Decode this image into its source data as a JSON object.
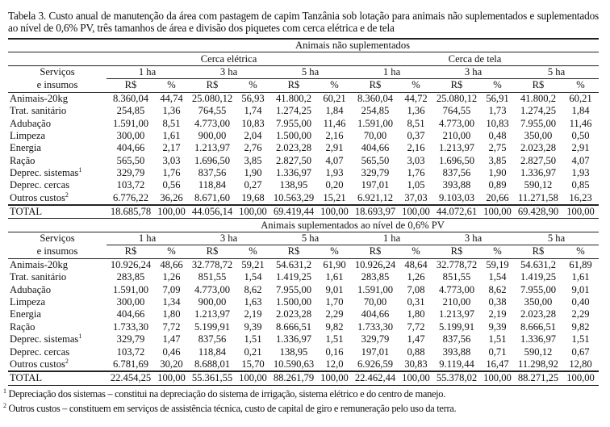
{
  "title": "Tabela 3. Custo anual de manutenção da área com pastagem de capim Tanzânia sob lotação para animais não suplementados e suplementados ao nível de 0,6% PV, três tamanhos de área e divisão dos piquetes com cerca elétrica e de tela",
  "header": {
    "services_line1": "Serviços",
    "services_line2": "e insumos",
    "fences": [
      "Cerca elétrica",
      "Cerca de tela"
    ],
    "areas": [
      "1 ha",
      "3 ha",
      "5 ha"
    ],
    "units": [
      "R$",
      "%"
    ]
  },
  "sections": [
    {
      "title": "Animais não suplementados",
      "show_fence_row": true,
      "rows": [
        {
          "label": "Animais-20kg",
          "sup": "",
          "values": [
            "8.360,04",
            "44,74",
            "25.080,12",
            "56,93",
            "41.800,2",
            "60,21",
            "8.360,04",
            "44,72",
            "25.080,12",
            "56,91",
            "41.800,2",
            "60,21"
          ]
        },
        {
          "label": "Trat. sanitário",
          "sup": "",
          "values": [
            "254,85",
            "1,36",
            "764,55",
            "1,74",
            "1.274,25",
            "1,84",
            "254,85",
            "1,36",
            "764,55",
            "1,73",
            "1.274,25",
            "1,84"
          ]
        },
        {
          "label": "Adubação",
          "sup": "",
          "values": [
            "1.591,00",
            "8,51",
            "4.773,00",
            "10,83",
            "7.955,00",
            "11,46",
            "1.591,00",
            "8,51",
            "4.773,00",
            "10,83",
            "7.955,00",
            "11,46"
          ]
        },
        {
          "label": "Limpeza",
          "sup": "",
          "values": [
            "300,00",
            "1,61",
            "900,00",
            "2,04",
            "1.500,00",
            "2,16",
            "70,00",
            "0,37",
            "210,00",
            "0,48",
            "350,00",
            "0,50"
          ]
        },
        {
          "label": "Energia",
          "sup": "",
          "values": [
            "404,66",
            "2,17",
            "1.213,97",
            "2,76",
            "2.023,28",
            "2,91",
            "404,66",
            "2,16",
            "1.213,97",
            "2,75",
            "2.023,28",
            "2,91"
          ]
        },
        {
          "label": "Ração",
          "sup": "",
          "values": [
            "565,50",
            "3,03",
            "1.696,50",
            "3,85",
            "2.827,50",
            "4,07",
            "565,50",
            "3,03",
            "1.696,50",
            "3,85",
            "2.827,50",
            "4,07"
          ]
        },
        {
          "label": "Deprec. sistemas",
          "sup": "1",
          "values": [
            "329,79",
            "1,76",
            "837,56",
            "1,90",
            "1.336,97",
            "1,93",
            "329,79",
            "1,76",
            "837,56",
            "1,90",
            "1.336,97",
            "1,93"
          ]
        },
        {
          "label": "Deprec. cercas",
          "sup": "",
          "values": [
            "103,72",
            "0,56",
            "118,84",
            "0,27",
            "138,95",
            "0,20",
            "197,01",
            "1,05",
            "393,88",
            "0,89",
            "590,12",
            "0,85"
          ]
        },
        {
          "label": "Outros custos",
          "sup": "2",
          "values": [
            "6.776,22",
            "36,26",
            "8.671,60",
            "19,68",
            "10.563,29",
            "15,21",
            "6.921,12",
            "37,03",
            "9.103,03",
            "20,66",
            "11.271,58",
            "16,23"
          ]
        }
      ],
      "total": {
        "label": "TOTAL",
        "values": [
          "18.685,78",
          "100,00",
          "44.056,14",
          "100,00",
          "69.419,44",
          "100,00",
          "18.693,97",
          "100,00",
          "44.072,61",
          "100,00",
          "69.428,90",
          "100,00"
        ]
      }
    },
    {
      "title": "Animais suplementados ao nível de 0,6% PV",
      "show_fence_row": false,
      "rows": [
        {
          "label": "Animais-20kg",
          "sup": "",
          "values": [
            "10.926,24",
            "48,66",
            "32.778,72",
            "59,21",
            "54.631,2",
            "61,90",
            "10.926,24",
            "48,64",
            "32.778,72",
            "59,19",
            "54.631,2",
            "61,89"
          ]
        },
        {
          "label": "Trat. sanitário",
          "sup": "",
          "values": [
            "283,85",
            "1,26",
            "851,55",
            "1,54",
            "1.419,25",
            "1,61",
            "283,85",
            "1,26",
            "851,55",
            "1,54",
            "1.419,25",
            "1,61"
          ]
        },
        {
          "label": "Adubação",
          "sup": "",
          "values": [
            "1.591,00",
            "7,09",
            "4.773,00",
            "8,62",
            "7.955,00",
            "9,01",
            "1.591,00",
            "7,08",
            "4.773,00",
            "8,62",
            "7.955,00",
            "9,01"
          ]
        },
        {
          "label": "Limpeza",
          "sup": "",
          "values": [
            "300,00",
            "1,34",
            "900,00",
            "1,63",
            "1.500,00",
            "1,70",
            "70,00",
            "0,31",
            "210,00",
            "0,38",
            "350,00",
            "0,40"
          ]
        },
        {
          "label": "Energia",
          "sup": "",
          "values": [
            "404,66",
            "1,80",
            "1.213,97",
            "2,19",
            "2.023,28",
            "2,29",
            "404,66",
            "1,80",
            "1.213,97",
            "2,19",
            "2.023,28",
            "2,29"
          ]
        },
        {
          "label": "Ração",
          "sup": "",
          "values": [
            "1.733,30",
            "7,72",
            "5.199,91",
            "9,39",
            "8.666,51",
            "9,82",
            "1.733,30",
            "7,72",
            "5.199,91",
            "9,39",
            "8.666,51",
            "9,82"
          ]
        },
        {
          "label": "Deprec. sistemas",
          "sup": "1",
          "values": [
            "329,79",
            "1,47",
            "837,56",
            "1,51",
            "1.336,97",
            "1,51",
            "329,79",
            "1,47",
            "837,56",
            "1,51",
            "1.336,97",
            "1,51"
          ]
        },
        {
          "label": "Deprec. cercas",
          "sup": "",
          "values": [
            "103,72",
            "0,46",
            "118,84",
            "0,21",
            "138,95",
            "0,16",
            "197,01",
            "0,88",
            "393,88",
            "0,71",
            "590,12",
            "0,67"
          ]
        },
        {
          "label": "Outros custos",
          "sup": "2",
          "values": [
            "6.781,69",
            "30,20",
            "8.688,01",
            "15,70",
            "10.590,63",
            "12,0",
            "6.926,59",
            "30,83",
            "9.119,44",
            "16,47",
            "11.298,92",
            "12,80"
          ]
        }
      ],
      "total": {
        "label": "TOTAL",
        "values": [
          "22.454,25",
          "100,00",
          "55.361,55",
          "100,00",
          "88.261,79",
          "100,00",
          "22.462,44",
          "100,00",
          "55.378,02",
          "100,00",
          "88.271,25",
          "100,00"
        ]
      }
    }
  ],
  "footnotes": [
    {
      "mark": "1",
      "text": "Depreciação dos sistemas – constitui na depreciação do sistema de irrigação, sistema elétrico e do centro de manejo."
    },
    {
      "mark": "2",
      "text": "Outros custos – constituem em serviços de assistência técnica, custo de capital de giro e remuneração pelo uso da terra."
    }
  ]
}
